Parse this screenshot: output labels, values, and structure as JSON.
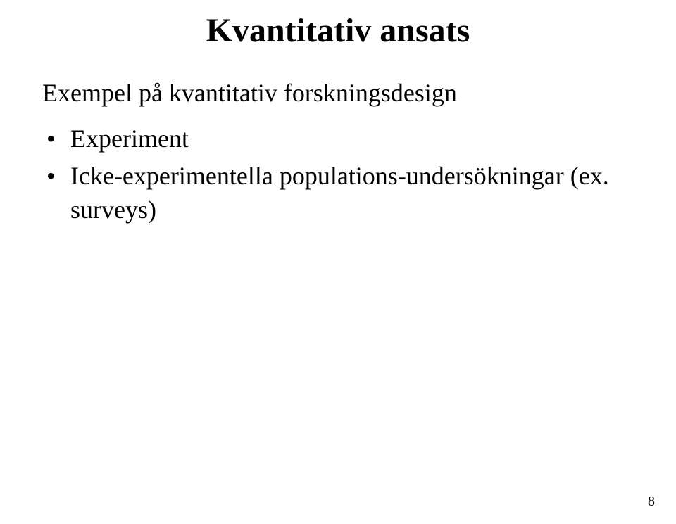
{
  "title": "Kvantitativ ansats",
  "subtitle": "Exempel på kvantitativ forskningsdesign",
  "bullets": [
    "Experiment",
    "Icke-experimentella populations-undersökningar (ex. surveys)"
  ],
  "page_number": "8",
  "colors": {
    "background": "#ffffff",
    "text": "#000000"
  },
  "typography": {
    "font_family": "Times New Roman",
    "title_fontsize_pt": 36,
    "title_weight": "bold",
    "body_fontsize_pt": 27,
    "pagenum_fontsize_pt": 15
  }
}
